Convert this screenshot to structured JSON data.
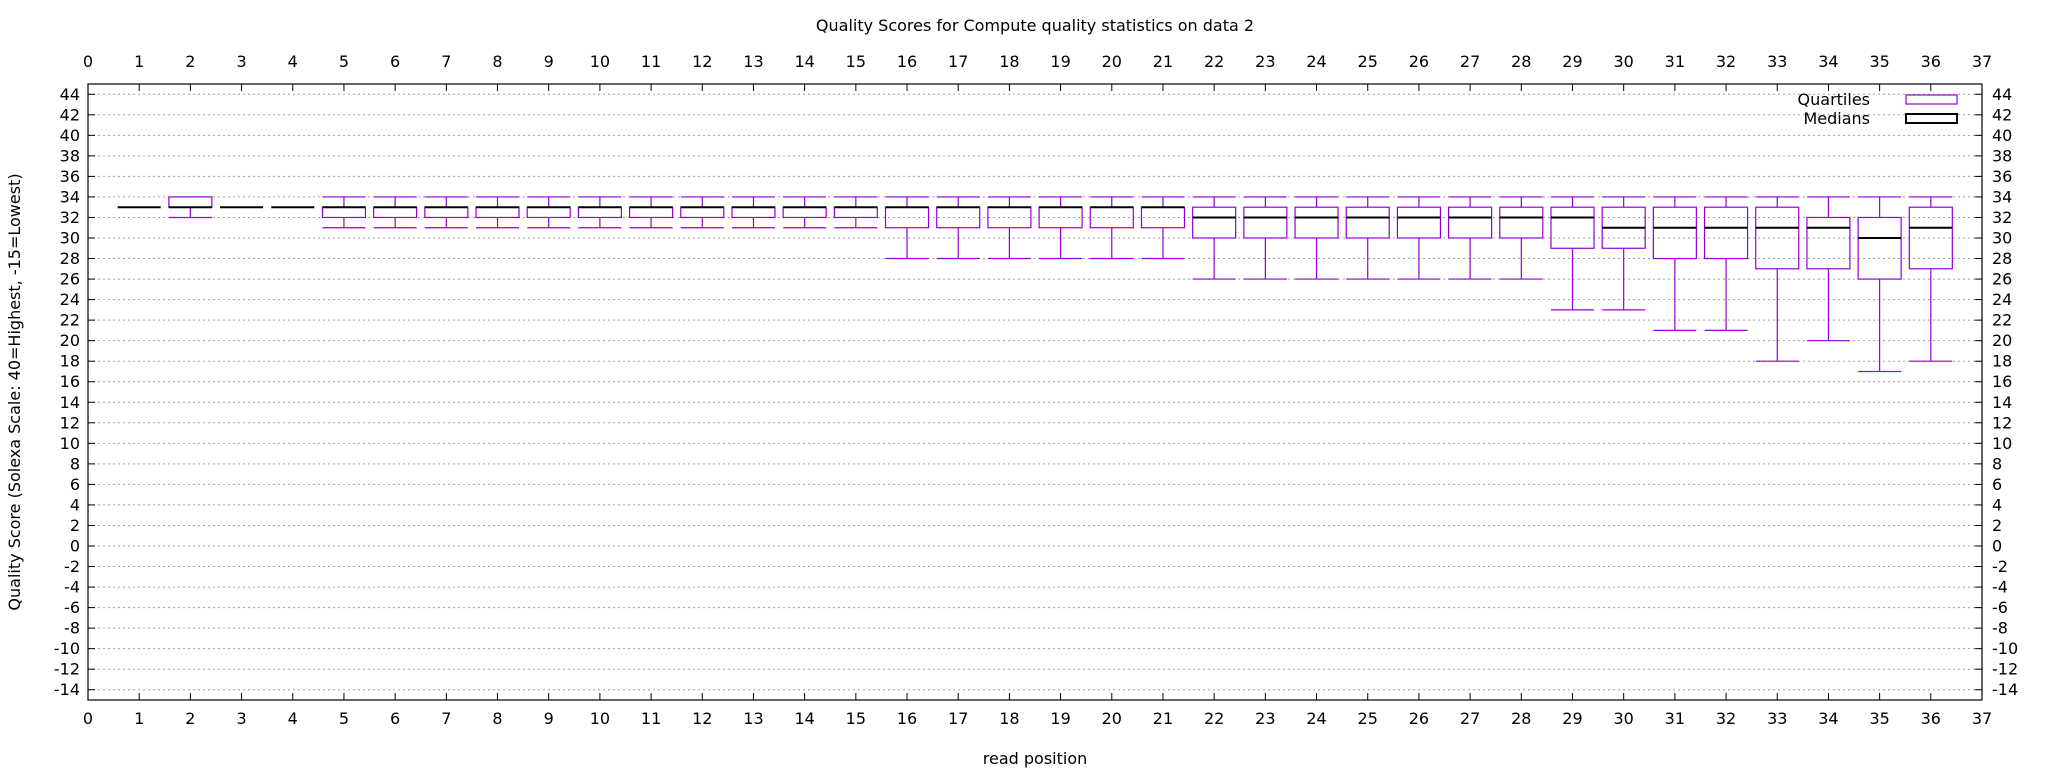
{
  "chart_data": {
    "type": "boxplot",
    "title": "Quality Scores for Compute quality statistics on data 2",
    "xlabel": "read position",
    "ylabel": "Quality Score (Solexa Scale: 40=Highest, -15=Lowest)",
    "xlim": [
      0,
      37
    ],
    "ylim": [
      -15,
      45
    ],
    "x_ticks": [
      0,
      1,
      2,
      3,
      4,
      5,
      6,
      7,
      8,
      9,
      10,
      11,
      12,
      13,
      14,
      15,
      16,
      17,
      18,
      19,
      20,
      21,
      22,
      23,
      24,
      25,
      26,
      27,
      28,
      29,
      30,
      31,
      32,
      33,
      34,
      35,
      36,
      37
    ],
    "y_ticks": [
      -14,
      -12,
      -10,
      -8,
      -6,
      -4,
      -2,
      0,
      2,
      4,
      6,
      8,
      10,
      12,
      14,
      16,
      18,
      20,
      22,
      24,
      26,
      28,
      30,
      32,
      34,
      36,
      38,
      40,
      42,
      44
    ],
    "mirror_axes": true,
    "grid": "horizontal dotted",
    "legend_position": "top-right",
    "legend": [
      {
        "label": "Quartiles",
        "color": "#9400d3"
      },
      {
        "label": "Medians",
        "color": "#000000"
      }
    ],
    "colors": {
      "box": "#9400d3",
      "median": "#000000",
      "grid": "#a0a0a0"
    },
    "boxes": [
      {
        "x": 1,
        "whisker_low": 33,
        "q1": 33,
        "median": 33,
        "q3": 33,
        "whisker_high": 33
      },
      {
        "x": 2,
        "whisker_low": 32,
        "q1": 33,
        "median": 33,
        "q3": 34,
        "whisker_high": 34
      },
      {
        "x": 3,
        "whisker_low": 33,
        "q1": 33,
        "median": 33,
        "q3": 33,
        "whisker_high": 33
      },
      {
        "x": 4,
        "whisker_low": 33,
        "q1": 33,
        "median": 33,
        "q3": 33,
        "whisker_high": 33
      },
      {
        "x": 5,
        "whisker_low": 31,
        "q1": 32,
        "median": 33,
        "q3": 33,
        "whisker_high": 34
      },
      {
        "x": 6,
        "whisker_low": 31,
        "q1": 32,
        "median": 33,
        "q3": 33,
        "whisker_high": 34
      },
      {
        "x": 7,
        "whisker_low": 31,
        "q1": 32,
        "median": 33,
        "q3": 33,
        "whisker_high": 34
      },
      {
        "x": 8,
        "whisker_low": 31,
        "q1": 32,
        "median": 33,
        "q3": 33,
        "whisker_high": 34
      },
      {
        "x": 9,
        "whisker_low": 31,
        "q1": 32,
        "median": 33,
        "q3": 33,
        "whisker_high": 34
      },
      {
        "x": 10,
        "whisker_low": 31,
        "q1": 32,
        "median": 33,
        "q3": 33,
        "whisker_high": 34
      },
      {
        "x": 11,
        "whisker_low": 31,
        "q1": 32,
        "median": 33,
        "q3": 33,
        "whisker_high": 34
      },
      {
        "x": 12,
        "whisker_low": 31,
        "q1": 32,
        "median": 33,
        "q3": 33,
        "whisker_high": 34
      },
      {
        "x": 13,
        "whisker_low": 31,
        "q1": 32,
        "median": 33,
        "q3": 33,
        "whisker_high": 34
      },
      {
        "x": 14,
        "whisker_low": 31,
        "q1": 32,
        "median": 33,
        "q3": 33,
        "whisker_high": 34
      },
      {
        "x": 15,
        "whisker_low": 31,
        "q1": 32,
        "median": 33,
        "q3": 33,
        "whisker_high": 34
      },
      {
        "x": 16,
        "whisker_low": 28,
        "q1": 31,
        "median": 33,
        "q3": 33,
        "whisker_high": 34
      },
      {
        "x": 17,
        "whisker_low": 28,
        "q1": 31,
        "median": 33,
        "q3": 33,
        "whisker_high": 34
      },
      {
        "x": 18,
        "whisker_low": 28,
        "q1": 31,
        "median": 33,
        "q3": 33,
        "whisker_high": 34
      },
      {
        "x": 19,
        "whisker_low": 28,
        "q1": 31,
        "median": 33,
        "q3": 33,
        "whisker_high": 34
      },
      {
        "x": 20,
        "whisker_low": 28,
        "q1": 31,
        "median": 33,
        "q3": 33,
        "whisker_high": 34
      },
      {
        "x": 21,
        "whisker_low": 28,
        "q1": 31,
        "median": 33,
        "q3": 33,
        "whisker_high": 34
      },
      {
        "x": 22,
        "whisker_low": 26,
        "q1": 30,
        "median": 32,
        "q3": 33,
        "whisker_high": 34
      },
      {
        "x": 23,
        "whisker_low": 26,
        "q1": 30,
        "median": 32,
        "q3": 33,
        "whisker_high": 34
      },
      {
        "x": 24,
        "whisker_low": 26,
        "q1": 30,
        "median": 32,
        "q3": 33,
        "whisker_high": 34
      },
      {
        "x": 25,
        "whisker_low": 26,
        "q1": 30,
        "median": 32,
        "q3": 33,
        "whisker_high": 34
      },
      {
        "x": 26,
        "whisker_low": 26,
        "q1": 30,
        "median": 32,
        "q3": 33,
        "whisker_high": 34
      },
      {
        "x": 27,
        "whisker_low": 26,
        "q1": 30,
        "median": 32,
        "q3": 33,
        "whisker_high": 34
      },
      {
        "x": 28,
        "whisker_low": 26,
        "q1": 30,
        "median": 32,
        "q3": 33,
        "whisker_high": 34
      },
      {
        "x": 29,
        "whisker_low": 23,
        "q1": 29,
        "median": 32,
        "q3": 33,
        "whisker_high": 34
      },
      {
        "x": 30,
        "whisker_low": 23,
        "q1": 29,
        "median": 31,
        "q3": 33,
        "whisker_high": 34
      },
      {
        "x": 31,
        "whisker_low": 21,
        "q1": 28,
        "median": 31,
        "q3": 33,
        "whisker_high": 34
      },
      {
        "x": 32,
        "whisker_low": 21,
        "q1": 28,
        "median": 31,
        "q3": 33,
        "whisker_high": 34
      },
      {
        "x": 33,
        "whisker_low": 18,
        "q1": 27,
        "median": 31,
        "q3": 33,
        "whisker_high": 34
      },
      {
        "x": 34,
        "whisker_low": 20,
        "q1": 27,
        "median": 31,
        "q3": 32,
        "whisker_high": 34
      },
      {
        "x": 35,
        "whisker_low": 17,
        "q1": 26,
        "median": 30,
        "q3": 32,
        "whisker_high": 34
      },
      {
        "x": 36,
        "whisker_low": 18,
        "q1": 27,
        "median": 31,
        "q3": 33,
        "whisker_high": 34
      }
    ]
  }
}
